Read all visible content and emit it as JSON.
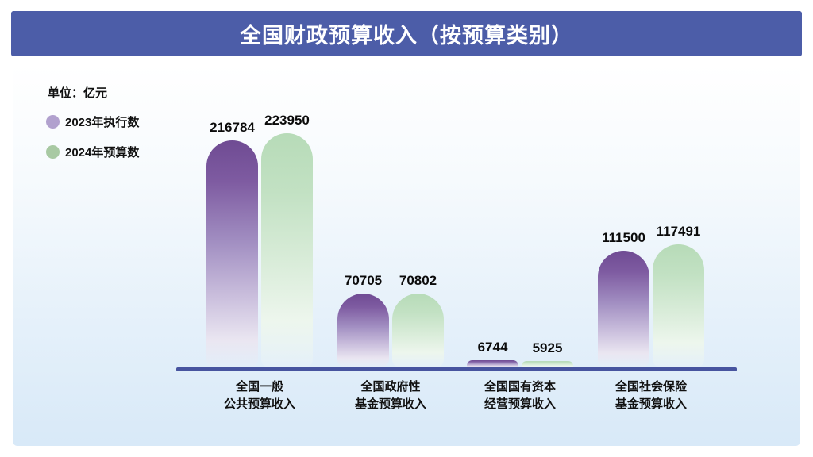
{
  "header": {
    "title": "全国财政预算收入（按预算类别）"
  },
  "legend": {
    "unit": "单位：亿元",
    "items": [
      {
        "label": "2023年执行数",
        "color": "#B1A1CE"
      },
      {
        "label": "2024年预算数",
        "color": "#A8C9A3"
      }
    ]
  },
  "colors": {
    "title_bar": "#4C5DA8",
    "axis_line": "#47549F",
    "bar_purple_top": "#6F4B93",
    "bar_green_top": "#B7DBB8",
    "panel_bottom": "#D8E9F8",
    "text": "#111111"
  },
  "chart_data": {
    "type": "bar",
    "title": "全国财政预算收入（按预算类别）",
    "unit": "亿元",
    "categories": [
      "全国一般 公共预算收入",
      "全国政府性 基金预算收入",
      "全国国有资本 经营预算收入",
      "全国社会保险 基金预算收入"
    ],
    "category_lines": [
      [
        "全国一般",
        "公共预算收入"
      ],
      [
        "全国政府性",
        "基金预算收入"
      ],
      [
        "全国国有资本",
        "经营预算收入"
      ],
      [
        "全国社会保险",
        "基金预算收入"
      ]
    ],
    "series": [
      {
        "name": "2023年执行数",
        "color": "#6F4B93",
        "values": [
          216784,
          70705,
          6744,
          111500
        ]
      },
      {
        "name": "2024年预算数",
        "color": "#B7DBB8",
        "values": [
          223950,
          70802,
          5925,
          117491
        ]
      }
    ],
    "ylim": [
      0,
      240000
    ],
    "grid": false,
    "value_labels": true,
    "legend_position": "top-left"
  }
}
